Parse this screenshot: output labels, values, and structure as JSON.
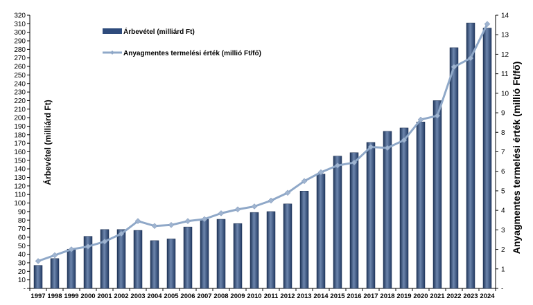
{
  "chart_data": {
    "type": "bar+line",
    "categories": [
      "1997",
      "1998",
      "1999",
      "2000",
      "2001",
      "2002",
      "2003",
      "2004",
      "2005",
      "2006",
      "2007",
      "2008",
      "2009",
      "2010",
      "2011",
      "2012",
      "2013",
      "2014",
      "2015",
      "2016",
      "2017",
      "2018",
      "2019",
      "2020",
      "2021",
      "2022",
      "2023",
      "2024"
    ],
    "series": [
      {
        "name": "Árbevétel (milliárd Ft)",
        "type": "bar",
        "axis": "left",
        "color": "#2e4b7c",
        "values": [
          27,
          35,
          46,
          61,
          69,
          69,
          68,
          56,
          58,
          72,
          81,
          81,
          76,
          89,
          90,
          99,
          114,
          134,
          155,
          159,
          171,
          184,
          188,
          195,
          220,
          282,
          311,
          305
        ]
      },
      {
        "name": "Anyagmentes termelési érték (millió Ft/fő)",
        "type": "line",
        "axis": "right",
        "color": "#8fa8c8",
        "values": [
          1.4,
          1.7,
          2.0,
          2.15,
          2.4,
          2.8,
          3.45,
          3.2,
          3.25,
          3.45,
          3.55,
          3.85,
          4.05,
          4.2,
          4.5,
          4.9,
          5.5,
          5.95,
          6.3,
          6.45,
          7.25,
          7.2,
          7.6,
          8.65,
          8.85,
          11.35,
          11.8,
          13.55
        ]
      }
    ],
    "ylabel": "Árbevétel (milliárd Ft)",
    "y2label": "Anyagmentes termelési érték (millió Ft/fő)",
    "ylim": [
      0,
      320
    ],
    "ytick_step": 10,
    "y2lim": [
      0,
      14
    ],
    "y2tick_step": 1,
    "zero_tick_label": "-",
    "grid": false,
    "legend_position": "top-left"
  }
}
